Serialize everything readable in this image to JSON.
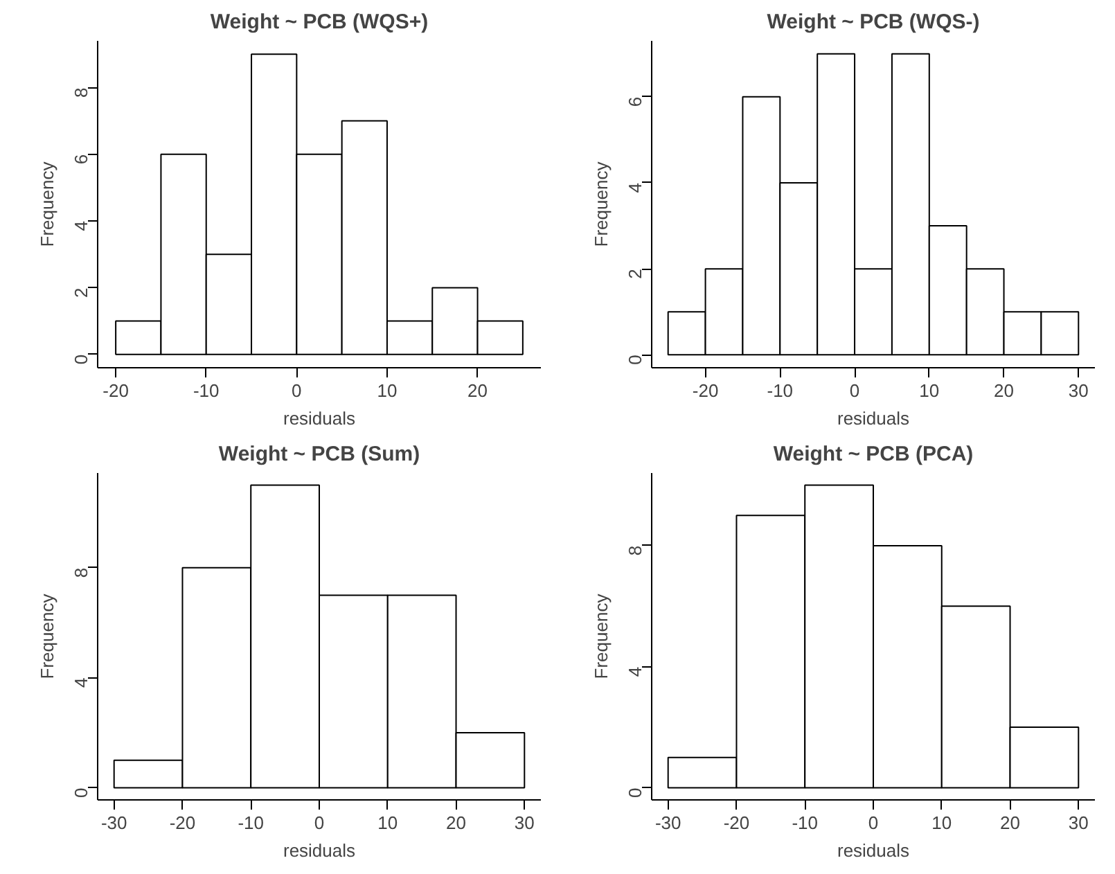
{
  "chart_data": [
    {
      "type": "histogram",
      "title": "Weight ~ PCB (WQS+)",
      "xlabel": "residuals",
      "ylabel": "Frequency",
      "bins": [
        -20,
        -15,
        -10,
        -5,
        0,
        5,
        10,
        15,
        20,
        25
      ],
      "values": [
        1,
        6,
        3,
        9,
        6,
        7,
        1,
        2,
        1
      ],
      "color": "#ffffff",
      "xlim": [
        -22,
        27
      ],
      "ylim": [
        -0.4,
        9.4
      ],
      "xticks": [
        -20,
        -10,
        0,
        10,
        20
      ],
      "yticks": [
        0,
        2,
        4,
        6,
        8
      ]
    },
    {
      "type": "histogram",
      "title": "Weight ~ PCB (WQS-)",
      "xlabel": "residuals",
      "ylabel": "Frequency",
      "bins": [
        -25,
        -20,
        -15,
        -10,
        -5,
        0,
        5,
        10,
        15,
        20,
        25,
        30
      ],
      "values": [
        1,
        2,
        6,
        4,
        7,
        2,
        7,
        3,
        2,
        1,
        1
      ],
      "color": "#ffffff",
      "xlim": [
        -27.2,
        32.2
      ],
      "ylim": [
        -0.3,
        7.3
      ],
      "xticks": [
        -20,
        -10,
        0,
        10,
        20,
        30
      ],
      "yticks": [
        0,
        2,
        4,
        6
      ]
    },
    {
      "type": "histogram",
      "title": "Weight ~ PCB (Sum)",
      "xlabel": "residuals",
      "ylabel": "Frequency",
      "bins": [
        -30,
        -20,
        -10,
        0,
        10,
        20,
        30
      ],
      "values": [
        1,
        8,
        11,
        7,
        7,
        2
      ],
      "color": "#ffffff",
      "xlim": [
        -32.4,
        32.4
      ],
      "ylim": [
        -0.44,
        11.44
      ],
      "xticks": [
        -30,
        -20,
        -10,
        0,
        10,
        20,
        30
      ],
      "yticks": [
        0,
        4,
        8
      ]
    },
    {
      "type": "histogram",
      "title": "Weight ~ PCB (PCA)",
      "xlabel": "residuals",
      "ylabel": "Frequency",
      "bins": [
        -30,
        -20,
        -10,
        0,
        10,
        20,
        30
      ],
      "values": [
        1,
        9,
        10,
        8,
        6,
        2
      ],
      "color": "#ffffff",
      "xlim": [
        -32.4,
        32.4
      ],
      "ylim": [
        -0.4,
        10.4
      ],
      "xticks": [
        -30,
        -20,
        -10,
        0,
        10,
        20,
        30
      ],
      "yticks": [
        0,
        4,
        8
      ]
    }
  ]
}
